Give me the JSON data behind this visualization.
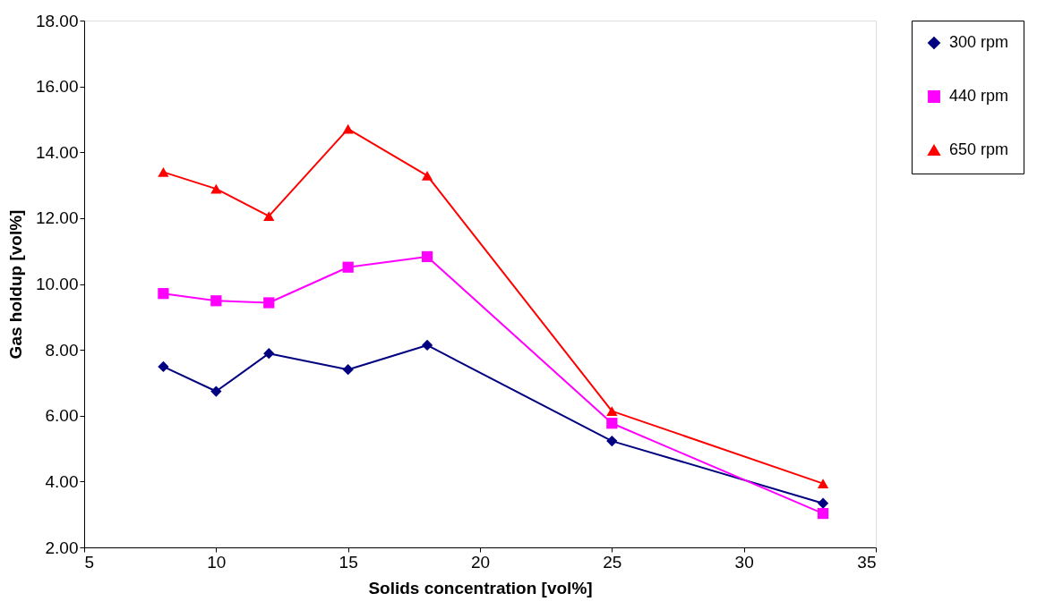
{
  "chart_data": {
    "type": "line",
    "xlabel": "Solids concentration [vol%]",
    "ylabel": "Gas holdup [vol%]",
    "x": [
      8,
      10,
      12,
      15,
      18,
      25,
      33
    ],
    "series": [
      {
        "name": "300 rpm",
        "color": "#000080",
        "marker": "diamond",
        "values": [
          7.49,
          6.74,
          7.89,
          7.4,
          8.14,
          5.23,
          3.34
        ]
      },
      {
        "name": "440 rpm",
        "color": "#ff00ff",
        "marker": "square",
        "values": [
          9.71,
          9.49,
          9.43,
          10.51,
          10.83,
          5.77,
          3.03
        ]
      },
      {
        "name": "650 rpm",
        "color": "#ff0000",
        "marker": "triangle",
        "values": [
          13.4,
          12.89,
          12.06,
          14.71,
          13.29,
          6.14,
          3.94
        ]
      }
    ],
    "xlim": [
      5,
      35
    ],
    "xticks": [
      5,
      10,
      15,
      20,
      25,
      30,
      35
    ],
    "ylim": [
      2,
      18
    ],
    "yticks": [
      {
        "value": 2,
        "label": "2.00"
      },
      {
        "value": 4,
        "label": "4.00"
      },
      {
        "value": 6,
        "label": "6.00"
      },
      {
        "value": 8,
        "label": "8.00"
      },
      {
        "value": 10,
        "label": "10.00"
      },
      {
        "value": 12,
        "label": "12.00"
      },
      {
        "value": 14,
        "label": "14.00"
      },
      {
        "value": 16,
        "label": "16.00"
      },
      {
        "value": 18,
        "label": "18.00"
      }
    ],
    "grid": false,
    "legend": "right",
    "line_style": "solid"
  }
}
